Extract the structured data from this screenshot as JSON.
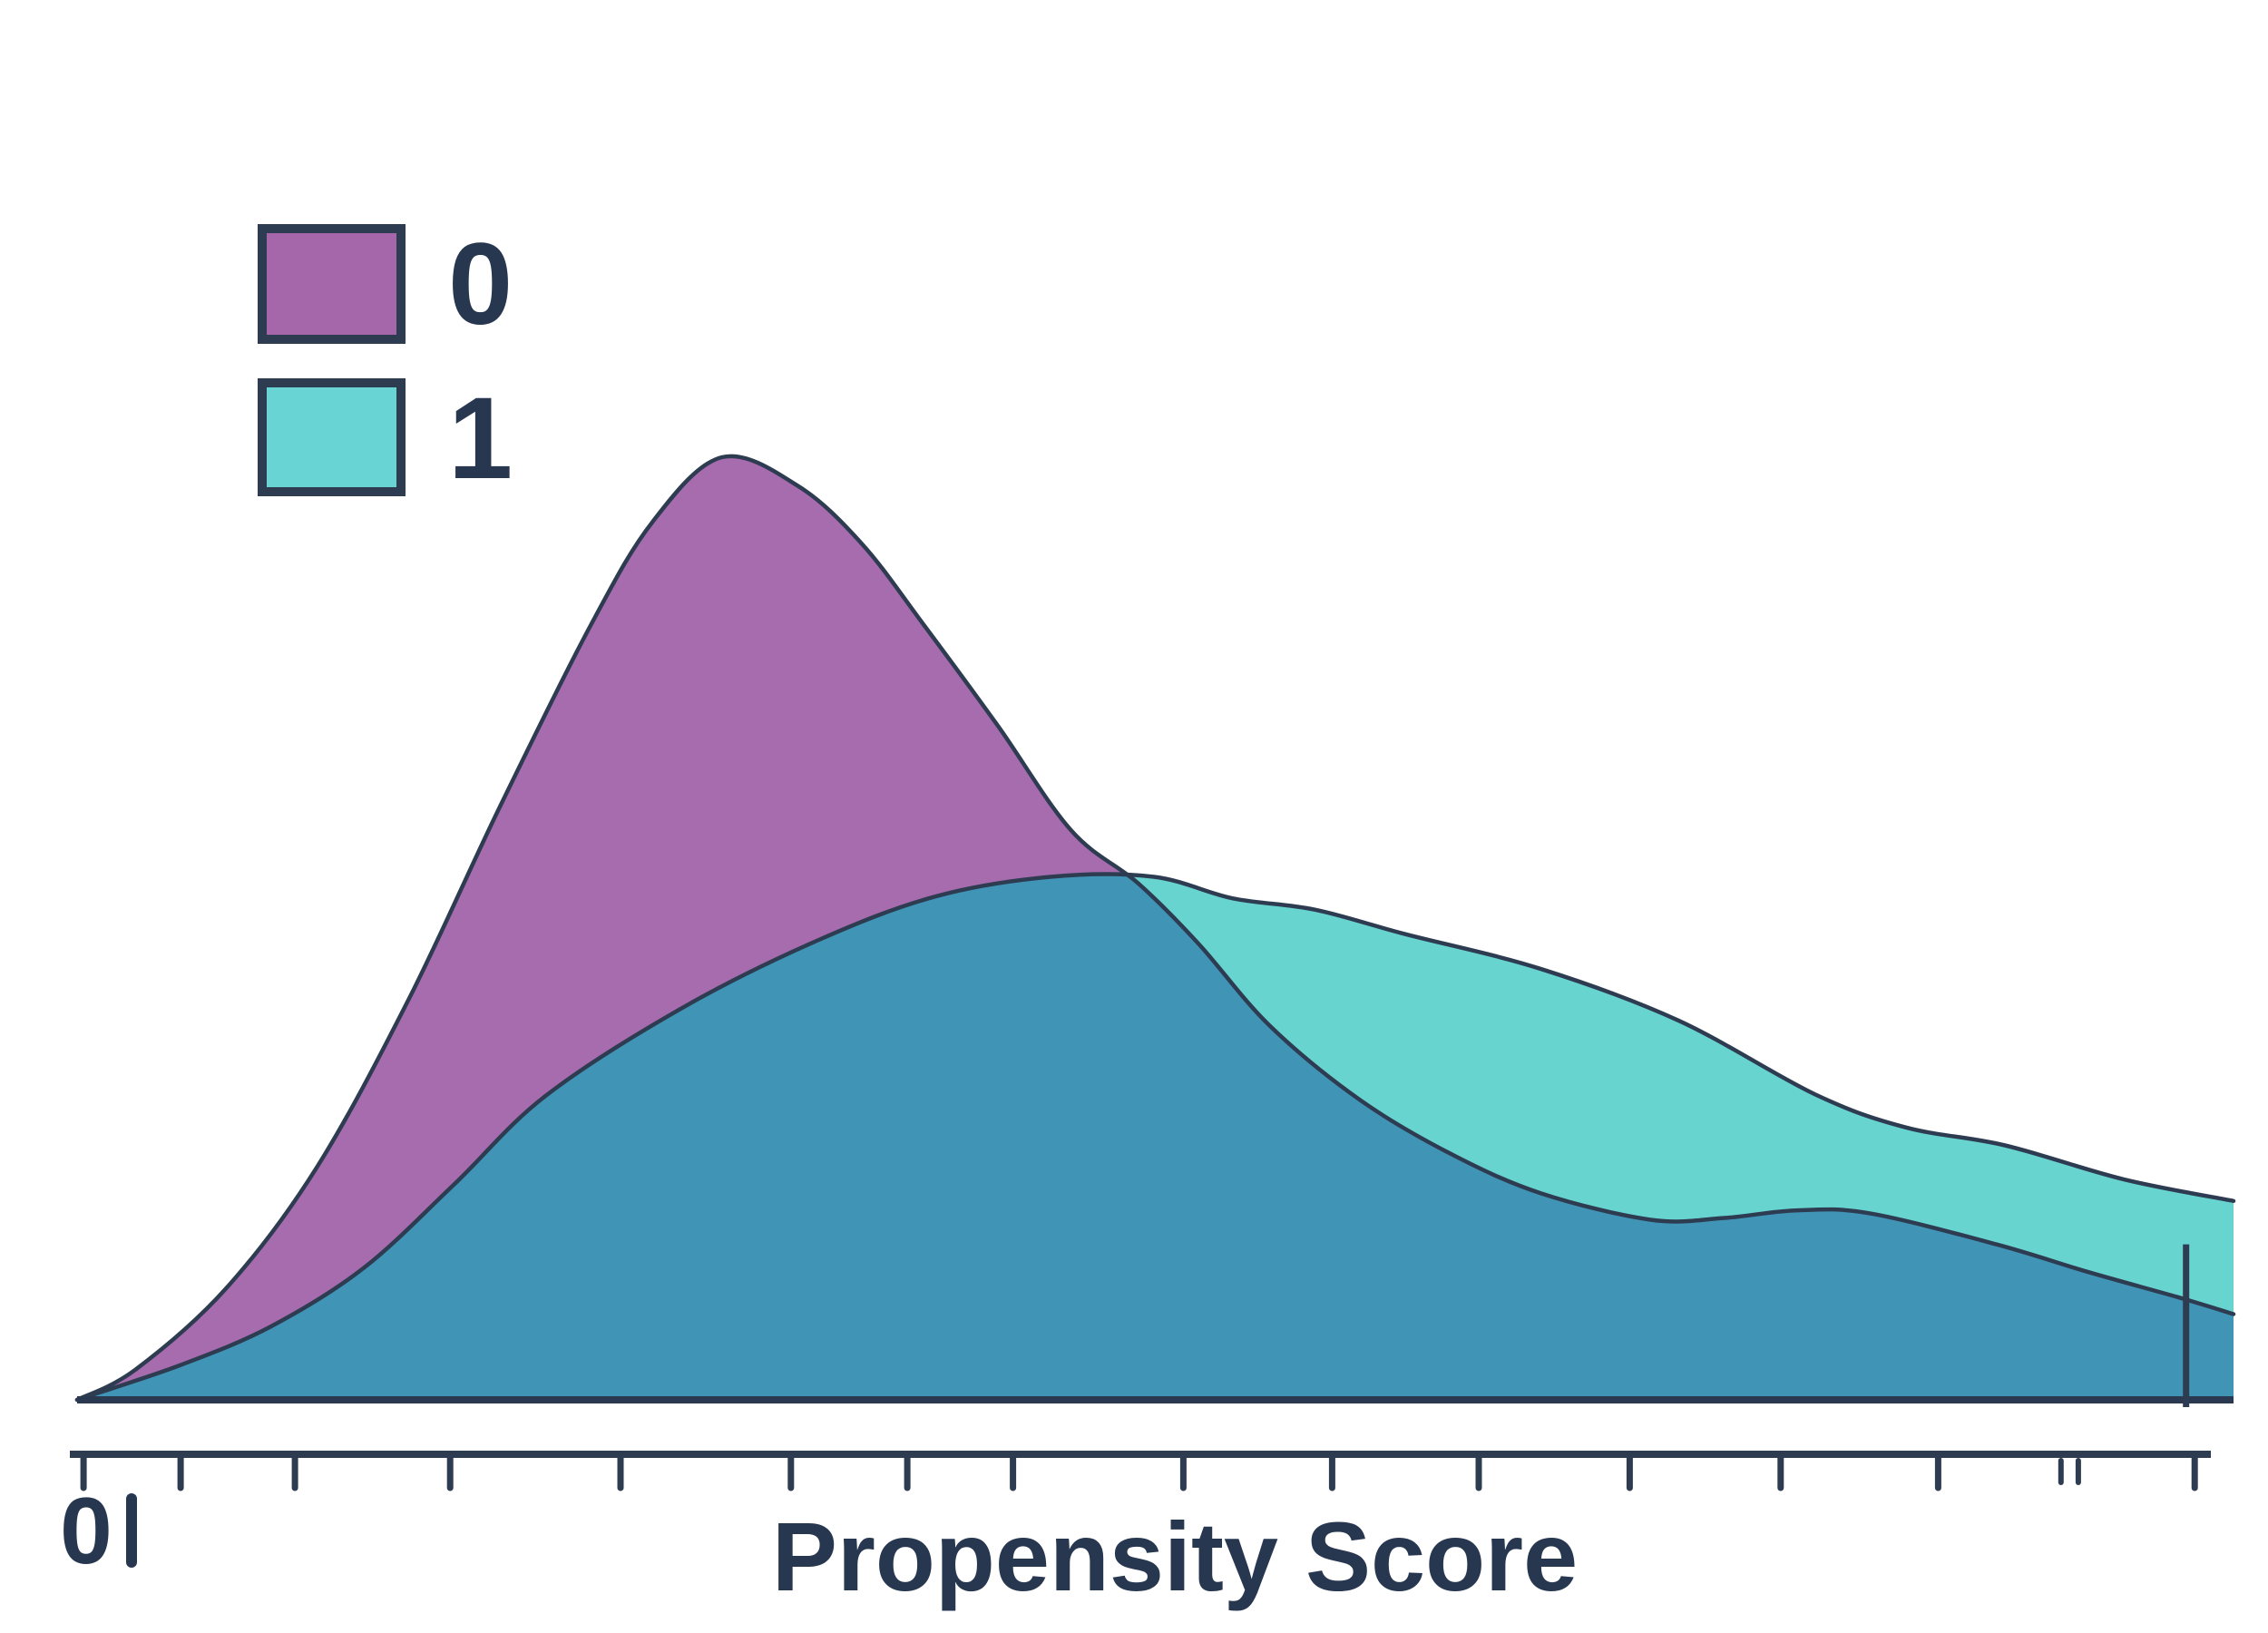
{
  "chart_data": {
    "type": "area",
    "subtype": "kde-density-overlay",
    "title": "",
    "xlabel": "Propensity Score",
    "ylabel": "",
    "x_tick_labels": [
      "0"
    ],
    "grid": false,
    "legend_position": "upper-left",
    "x_normalized_range": [
      0,
      1
    ],
    "density_normalized_max": 1.0,
    "series": [
      {
        "name": "0",
        "fill": "#a76cae",
        "points": [
          [
            0.0,
            0.0
          ],
          [
            0.027,
            0.032
          ],
          [
            0.069,
            0.118
          ],
          [
            0.111,
            0.246
          ],
          [
            0.154,
            0.426
          ],
          [
            0.196,
            0.629
          ],
          [
            0.238,
            0.821
          ],
          [
            0.267,
            0.932
          ],
          [
            0.299,
            1.0
          ],
          [
            0.334,
            0.97
          ],
          [
            0.364,
            0.908
          ],
          [
            0.393,
            0.821
          ],
          [
            0.427,
            0.715
          ],
          [
            0.461,
            0.604
          ],
          [
            0.492,
            0.548
          ],
          [
            0.52,
            0.484
          ],
          [
            0.553,
            0.397
          ],
          [
            0.595,
            0.318
          ],
          [
            0.637,
            0.261
          ],
          [
            0.679,
            0.219
          ],
          [
            0.73,
            0.191
          ],
          [
            0.764,
            0.193
          ],
          [
            0.797,
            0.201
          ],
          [
            0.831,
            0.198
          ],
          [
            0.89,
            0.165
          ],
          [
            0.932,
            0.136
          ],
          [
            0.974,
            0.109
          ],
          [
            1.0,
            0.091
          ]
        ]
      },
      {
        "name": "1",
        "fill": "#68d4d0",
        "points": [
          [
            0.0,
            0.0
          ],
          [
            0.048,
            0.037
          ],
          [
            0.09,
            0.078
          ],
          [
            0.133,
            0.14
          ],
          [
            0.175,
            0.229
          ],
          [
            0.217,
            0.322
          ],
          [
            0.28,
            0.415
          ],
          [
            0.343,
            0.487
          ],
          [
            0.398,
            0.534
          ],
          [
            0.452,
            0.555
          ],
          [
            0.499,
            0.555
          ],
          [
            0.536,
            0.532
          ],
          [
            0.574,
            0.52
          ],
          [
            0.616,
            0.494
          ],
          [
            0.679,
            0.457
          ],
          [
            0.743,
            0.402
          ],
          [
            0.806,
            0.324
          ],
          [
            0.848,
            0.289
          ],
          [
            0.894,
            0.27
          ],
          [
            0.949,
            0.234
          ],
          [
            1.0,
            0.211
          ]
        ]
      }
    ],
    "overlap_fill": "#4095b7",
    "x_ticks": [
      0.003,
      0.048,
      0.101,
      0.173,
      0.252,
      0.331,
      0.385,
      0.434,
      0.513,
      0.582,
      0.65,
      0.72,
      0.79,
      0.863,
      0.982
    ],
    "x_minor_marks": [
      0.92,
      0.928
    ],
    "rug_mark": {
      "x": 0.978,
      "top_density": 0.165
    }
  },
  "legend": {
    "items": [
      {
        "label": "0",
        "swatch": "#a566aa"
      },
      {
        "label": "1",
        "swatch": "#68d5d4"
      }
    ]
  },
  "axis": {
    "label": "Propensity Score",
    "tick_label_0": "0",
    "stray_mark": "|"
  },
  "style": {
    "stroke": "#2e3c52",
    "text": "#273750",
    "baseline": "#2a3950",
    "background": "#ffffff"
  }
}
